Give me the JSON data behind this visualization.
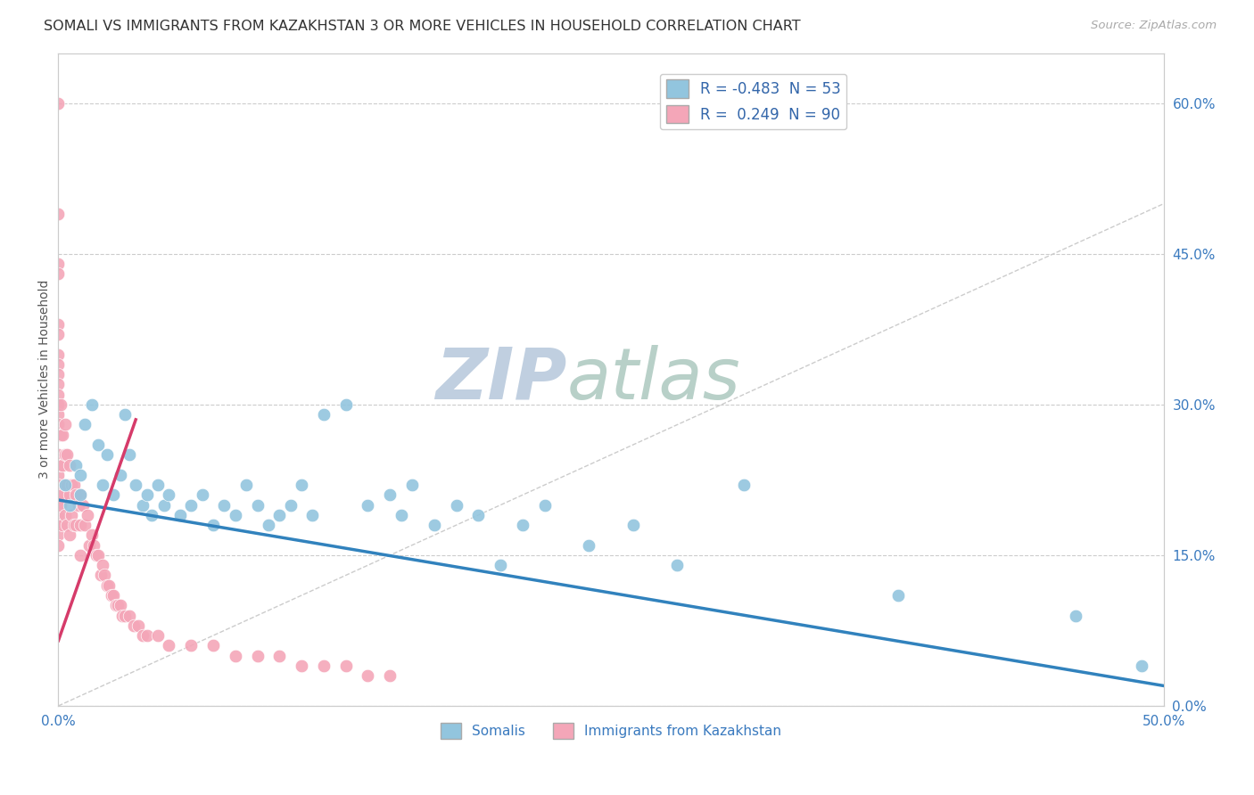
{
  "title": "SOMALI VS IMMIGRANTS FROM KAZAKHSTAN 3 OR MORE VEHICLES IN HOUSEHOLD CORRELATION CHART",
  "source": "Source: ZipAtlas.com",
  "ylabel": "3 or more Vehicles in Household",
  "xlim": [
    0.0,
    0.5
  ],
  "ylim": [
    0.0,
    0.65
  ],
  "xticks": [
    0.0,
    0.1,
    0.2,
    0.3,
    0.4,
    0.5
  ],
  "xticklabels": [
    "0.0%",
    "",
    "",
    "",
    "",
    "50.0%"
  ],
  "yticks_right": [
    0.0,
    0.15,
    0.3,
    0.45,
    0.6
  ],
  "yticklabels_right": [
    "0.0%",
    "15.0%",
    "30.0%",
    "45.0%",
    "60.0%"
  ],
  "grid_color": "#cccccc",
  "background_color": "#ffffff",
  "watermark_zip": "ZIP",
  "watermark_atlas": "atlas",
  "watermark_color_zip": "#c0cfe0",
  "watermark_color_atlas": "#b8d0c8",
  "legend_R_blue": "-0.483",
  "legend_N_blue": "53",
  "legend_R_pink": "0.249",
  "legend_N_pink": "90",
  "blue_color": "#92c5de",
  "pink_color": "#f4a6b8",
  "blue_line_color": "#3182bd",
  "pink_line_color": "#d63b6a",
  "identity_line_color": "#cccccc",
  "blue_trendline_x": [
    0.0,
    0.5
  ],
  "blue_trendline_y": [
    0.205,
    0.02
  ],
  "pink_trendline_x": [
    0.0,
    0.035
  ],
  "pink_trendline_y": [
    0.065,
    0.285
  ],
  "identity_line_x": [
    0.0,
    0.5
  ],
  "identity_line_y": [
    0.0,
    0.5
  ],
  "blue_x": [
    0.003,
    0.005,
    0.008,
    0.01,
    0.01,
    0.012,
    0.015,
    0.018,
    0.02,
    0.022,
    0.025,
    0.028,
    0.03,
    0.032,
    0.035,
    0.038,
    0.04,
    0.042,
    0.045,
    0.048,
    0.05,
    0.055,
    0.06,
    0.065,
    0.07,
    0.075,
    0.08,
    0.085,
    0.09,
    0.095,
    0.1,
    0.105,
    0.11,
    0.115,
    0.12,
    0.13,
    0.14,
    0.15,
    0.155,
    0.16,
    0.17,
    0.18,
    0.19,
    0.2,
    0.21,
    0.22,
    0.24,
    0.26,
    0.28,
    0.31,
    0.38,
    0.46,
    0.49
  ],
  "blue_y": [
    0.22,
    0.2,
    0.24,
    0.23,
    0.21,
    0.28,
    0.3,
    0.26,
    0.22,
    0.25,
    0.21,
    0.23,
    0.29,
    0.25,
    0.22,
    0.2,
    0.21,
    0.19,
    0.22,
    0.2,
    0.21,
    0.19,
    0.2,
    0.21,
    0.18,
    0.2,
    0.19,
    0.22,
    0.2,
    0.18,
    0.19,
    0.2,
    0.22,
    0.19,
    0.29,
    0.3,
    0.2,
    0.21,
    0.19,
    0.22,
    0.18,
    0.2,
    0.19,
    0.14,
    0.18,
    0.2,
    0.16,
    0.18,
    0.14,
    0.22,
    0.11,
    0.09,
    0.04
  ],
  "pink_x": [
    0.0,
    0.0,
    0.0,
    0.0,
    0.0,
    0.0,
    0.0,
    0.0,
    0.0,
    0.0,
    0.0,
    0.0,
    0.0,
    0.0,
    0.0,
    0.0,
    0.0,
    0.0,
    0.0,
    0.0,
    0.0,
    0.0,
    0.0,
    0.0,
    0.0,
    0.001,
    0.001,
    0.001,
    0.001,
    0.002,
    0.002,
    0.002,
    0.002,
    0.003,
    0.003,
    0.003,
    0.003,
    0.004,
    0.004,
    0.004,
    0.005,
    0.005,
    0.005,
    0.006,
    0.006,
    0.007,
    0.007,
    0.008,
    0.008,
    0.009,
    0.01,
    0.01,
    0.01,
    0.011,
    0.012,
    0.013,
    0.014,
    0.015,
    0.016,
    0.017,
    0.018,
    0.019,
    0.02,
    0.021,
    0.022,
    0.023,
    0.024,
    0.025,
    0.026,
    0.027,
    0.028,
    0.029,
    0.03,
    0.032,
    0.034,
    0.036,
    0.038,
    0.04,
    0.045,
    0.05,
    0.06,
    0.07,
    0.08,
    0.09,
    0.1,
    0.11,
    0.12,
    0.13,
    0.14,
    0.15
  ],
  "pink_y": [
    0.6,
    0.49,
    0.44,
    0.43,
    0.38,
    0.37,
    0.35,
    0.34,
    0.33,
    0.32,
    0.31,
    0.3,
    0.29,
    0.28,
    0.27,
    0.25,
    0.24,
    0.23,
    0.22,
    0.21,
    0.2,
    0.19,
    0.18,
    0.17,
    0.16,
    0.3,
    0.27,
    0.24,
    0.2,
    0.27,
    0.24,
    0.21,
    0.18,
    0.28,
    0.25,
    0.22,
    0.19,
    0.25,
    0.22,
    0.18,
    0.24,
    0.21,
    0.17,
    0.22,
    0.19,
    0.22,
    0.18,
    0.21,
    0.18,
    0.2,
    0.21,
    0.18,
    0.15,
    0.2,
    0.18,
    0.19,
    0.16,
    0.17,
    0.16,
    0.15,
    0.15,
    0.13,
    0.14,
    0.13,
    0.12,
    0.12,
    0.11,
    0.11,
    0.1,
    0.1,
    0.1,
    0.09,
    0.09,
    0.09,
    0.08,
    0.08,
    0.07,
    0.07,
    0.07,
    0.06,
    0.06,
    0.06,
    0.05,
    0.05,
    0.05,
    0.04,
    0.04,
    0.04,
    0.03,
    0.03
  ]
}
